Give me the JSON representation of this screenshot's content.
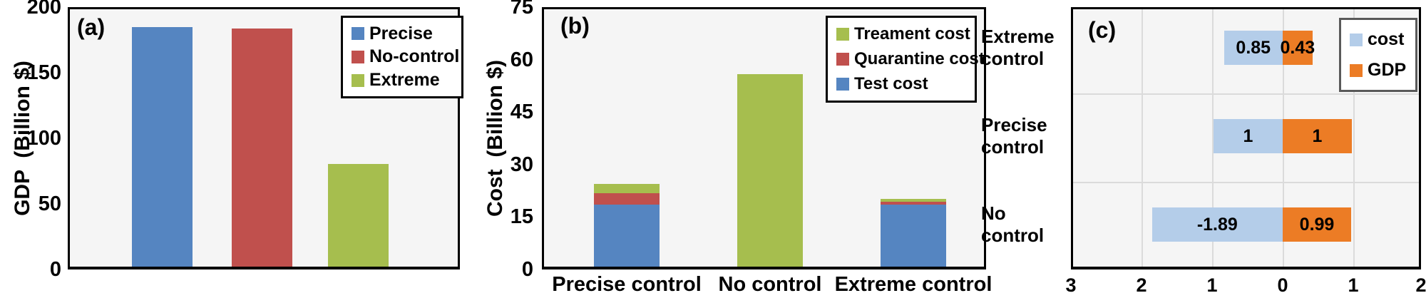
{
  "chart_data": [
    {
      "type": "bar",
      "panel_label": "(a)",
      "ylabel": "GDP  (Billion $)",
      "ylim": [
        0,
        200
      ],
      "yticks": [
        "0",
        "50",
        "100",
        "150",
        "200"
      ],
      "categories": [
        "Precise",
        "No-control",
        "Extreme"
      ],
      "values": [
        186,
        185,
        80
      ],
      "colors": [
        "#5585C1",
        "#C0504D",
        "#A6BE4E"
      ],
      "legend": [
        {
          "label": "Precise",
          "color": "#5585C1"
        },
        {
          "label": "No-control",
          "color": "#C0504D"
        },
        {
          "label": "Extreme",
          "color": "#A6BE4E"
        }
      ],
      "legend_position": "top-right",
      "grid": false,
      "plot_bg": "#f5f5f5"
    },
    {
      "type": "bar",
      "subtype": "stacked",
      "panel_label": "(b)",
      "ylabel": "Cost  (Billion $)",
      "ylim": [
        0,
        75
      ],
      "yticks": [
        "0",
        "15",
        "30",
        "45",
        "60",
        "75"
      ],
      "categories": [
        "Precise control",
        "No control",
        "Extreme control"
      ],
      "series": [
        {
          "name": "Test cost",
          "color": "#5585C1",
          "values": [
            18,
            0,
            18
          ]
        },
        {
          "name": "Quarantine cost",
          "color": "#C0504D",
          "values": [
            3.5,
            0,
            1
          ]
        },
        {
          "name": "Treament cost",
          "color": "#A6BE4E",
          "values": [
            2.5,
            56,
            0.8
          ]
        }
      ],
      "legend": [
        {
          "label": "Treament cost",
          "color": "#A6BE4E"
        },
        {
          "label": "Quarantine cost",
          "color": "#C0504D"
        },
        {
          "label": "Test cost",
          "color": "#5585C1"
        }
      ],
      "legend_position": "top-right",
      "grid": false,
      "plot_bg": "#f5f5f5"
    },
    {
      "type": "bar",
      "subtype": "diverging-horizontal",
      "panel_label": "(c)",
      "categories": [
        "Extreme control",
        "Precise control",
        "No control"
      ],
      "xticks": [
        "3",
        "2",
        "1",
        "0",
        "1",
        "2"
      ],
      "xlim_left": 3,
      "xlim_right": 2,
      "series": [
        {
          "name": "cost",
          "color": "#B4CDE9",
          "side": "left",
          "values": [
            0.85,
            1,
            1.89
          ],
          "labels": [
            "0.85",
            "1",
            "-1.89"
          ]
        },
        {
          "name": "GDP",
          "color": "#EC7C25",
          "side": "right",
          "values": [
            0.43,
            1,
            0.99
          ],
          "labels": [
            "0.43",
            "1",
            "0.99"
          ]
        }
      ],
      "legend": [
        {
          "label": "cost",
          "color": "#B4CDE9"
        },
        {
          "label": "GDP",
          "color": "#EC7C25"
        }
      ],
      "legend_position": "top-right",
      "grid": true,
      "plot_bg": "#f5f5f5"
    }
  ]
}
